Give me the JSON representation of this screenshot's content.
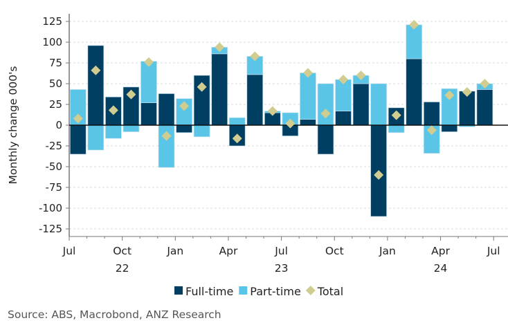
{
  "chart_data": {
    "type": "bar",
    "stacked": true,
    "title": "",
    "ylabel": "Monthly change 000's",
    "xlabel": "",
    "ylim": [
      -135,
      135
    ],
    "yticks": [
      -125,
      -100,
      -75,
      -50,
      -25,
      0,
      25,
      50,
      75,
      100,
      125
    ],
    "grid": true,
    "legend_position": "bottom",
    "categories": [
      "Jul-22",
      "Aug-22",
      "Sep-22",
      "Oct-22",
      "Nov-22",
      "Dec-22",
      "Jan-23",
      "Feb-23",
      "Mar-23",
      "Apr-23",
      "May-23",
      "Jun-23",
      "Jul-23",
      "Aug-23",
      "Sep-23",
      "Oct-23",
      "Nov-23",
      "Dec-23",
      "Jan-24",
      "Feb-24",
      "Mar-24",
      "Apr-24",
      "May-24",
      "Jun-24"
    ],
    "x_tick_labels": [
      {
        "month": "Jul",
        "year": ""
      },
      {
        "month": "Oct",
        "year": "22"
      },
      {
        "month": "Jan",
        "year": ""
      },
      {
        "month": "Apr",
        "year": ""
      },
      {
        "month": "Jul",
        "year": "23"
      },
      {
        "month": "Oct",
        "year": ""
      },
      {
        "month": "Jan",
        "year": ""
      },
      {
        "month": "Apr",
        "year": "24"
      },
      {
        "month": "Jul",
        "year": ""
      }
    ],
    "series": [
      {
        "name": "Full-time",
        "kind": "bar",
        "color": "#003f62",
        "values": [
          -35,
          96,
          34,
          46,
          27,
          38,
          -9,
          60,
          86,
          -25,
          61,
          15,
          -13,
          7,
          -35,
          17,
          50,
          -110,
          21,
          80,
          28,
          -8,
          41,
          43
        ]
      },
      {
        "name": "Part-time",
        "kind": "bar",
        "color": "#5bc5e8",
        "values": [
          43,
          -30,
          -16,
          -8,
          50,
          -51,
          32,
          -14,
          8,
          9,
          22,
          2,
          15,
          56,
          50,
          38,
          10,
          50,
          -9,
          41,
          -34,
          44,
          -2,
          7
        ]
      },
      {
        "name": "Total",
        "kind": "marker",
        "color": "#d1cc8f",
        "values": [
          8,
          66,
          18,
          37,
          76,
          -13,
          23,
          46,
          94,
          -16,
          83,
          17,
          2,
          63,
          14,
          55,
          60,
          -60,
          12,
          121,
          -6,
          36,
          40,
          50
        ]
      }
    ]
  },
  "source": "Source: ABS, Macrobond, ANZ Research"
}
